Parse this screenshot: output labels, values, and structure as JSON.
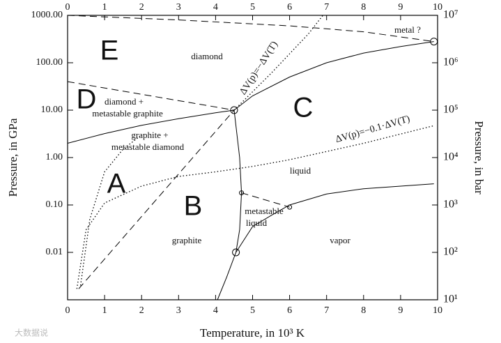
{
  "chart_data": {
    "type": "line",
    "xlabel": "Temperature, in 10³ K",
    "ylabel": "Pressure, in GPa",
    "y2label": "Pressure, in bar",
    "xlim": [
      0,
      10
    ],
    "xticks": [
      0,
      1,
      2,
      3,
      4,
      5,
      6,
      7,
      8,
      9,
      10
    ],
    "ylim": [
      0.001,
      1000
    ],
    "ylog": true,
    "yticks": [
      0.01,
      {
        "value": 0.1,
        "label": "0.10"
      },
      {
        "value": 1,
        "label": "1.00"
      },
      {
        "value": 10,
        "label": "10.00"
      },
      {
        "value": 100,
        "label": "100.00"
      },
      {
        "value": 1000,
        "label": "1000.00"
      }
    ],
    "y2lim": [
      10,
      10000000
    ],
    "y2log": true,
    "y2ticks": [
      {
        "value": 10,
        "label": "10¹"
      },
      {
        "value": 100,
        "label": "10²"
      },
      {
        "value": 1000,
        "label": "10³"
      },
      {
        "value": 10000,
        "label": "10⁴"
      },
      {
        "value": 100000,
        "label": "10⁵"
      },
      {
        "value": 1000000,
        "label": "10⁶"
      },
      {
        "value": 10000000,
        "label": "10⁷"
      }
    ],
    "series": [
      {
        "color": "#000000",
        "dash": "solid",
        "x": [
          0,
          1,
          2,
          3,
          4,
          4.5
        ],
        "values": [
          2,
          3.2,
          4.8,
          6.6,
          8.8,
          10
        ]
      },
      {
        "color": "#000000",
        "dash": "solid",
        "x": [
          4.5,
          5,
          6,
          7,
          8,
          9,
          9.9
        ],
        "values": [
          10,
          20,
          50,
          100,
          160,
          220,
          280
        ]
      },
      {
        "color": "#000000",
        "dash": "solid",
        "x": [
          4.5,
          4.65,
          4.7,
          4.65,
          4.55,
          4.3,
          4.05
        ],
        "values": [
          10,
          1,
          0.18,
          0.03,
          0.01,
          0.003,
          0.001
        ]
      },
      {
        "color": "#000000",
        "dash": "solid",
        "x": [
          4.55,
          5,
          5.5,
          6,
          7,
          8,
          9.9
        ],
        "values": [
          0.01,
          0.035,
          0.06,
          0.1,
          0.17,
          0.22,
          0.28
        ]
      },
      {
        "color": "#000000",
        "dash": "dashed",
        "x": [
          4.7,
          6
        ],
        "values": [
          0.18,
          0.09
        ]
      },
      {
        "color": "#000000",
        "dash": "dashed",
        "x": [
          0.3,
          4.5
        ],
        "values": [
          0.0017,
          10
        ]
      },
      {
        "color": "#000000",
        "dash": "dashed",
        "x": [
          0,
          4.5
        ],
        "values": [
          40,
          10
        ]
      },
      {
        "color": "#000000",
        "dash": "dashed",
        "x": [
          0,
          3,
          6,
          8,
          9.9
        ],
        "values": [
          1000,
          800,
          600,
          450,
          280
        ]
      },
      {
        "color": "#000000",
        "dash": "dotted",
        "x": [
          4.5,
          5.5,
          6.5,
          6.9
        ],
        "values": [
          10,
          60,
          400,
          1000
        ]
      },
      {
        "color": "#000000",
        "dash": "dotted",
        "x": [
          0.25,
          0.5,
          1,
          2,
          3,
          4,
          5,
          6,
          8,
          9.9
        ],
        "values": [
          0.0017,
          0.03,
          0.11,
          0.25,
          0.4,
          0.5,
          0.65,
          0.9,
          2,
          4.7
        ]
      },
      {
        "color": "#000000",
        "dash": "dotted",
        "x": [
          0.35,
          0.6,
          1,
          1.5,
          2
        ],
        "values": [
          0.002,
          0.05,
          0.5,
          1.5,
          3
        ]
      }
    ],
    "markers": {
      "x": [
        4.5,
        4.7,
        4.55,
        6,
        9.9
      ],
      "values": [
        10,
        0.18,
        0.01,
        0.09,
        280
      ]
    },
    "annotations": [
      "E",
      "diamond",
      "D",
      "diamond +",
      "metastable graphite",
      "C",
      "graphite +",
      "metastable diamond",
      "ΔV(p)=−ΔV(T)",
      "ΔV(p)=−0.1·ΔV(T)",
      "liquid",
      "A",
      "B",
      "metastable",
      "liquid",
      "graphite",
      "vapor",
      "metal ?",
      "大数据说"
    ]
  }
}
